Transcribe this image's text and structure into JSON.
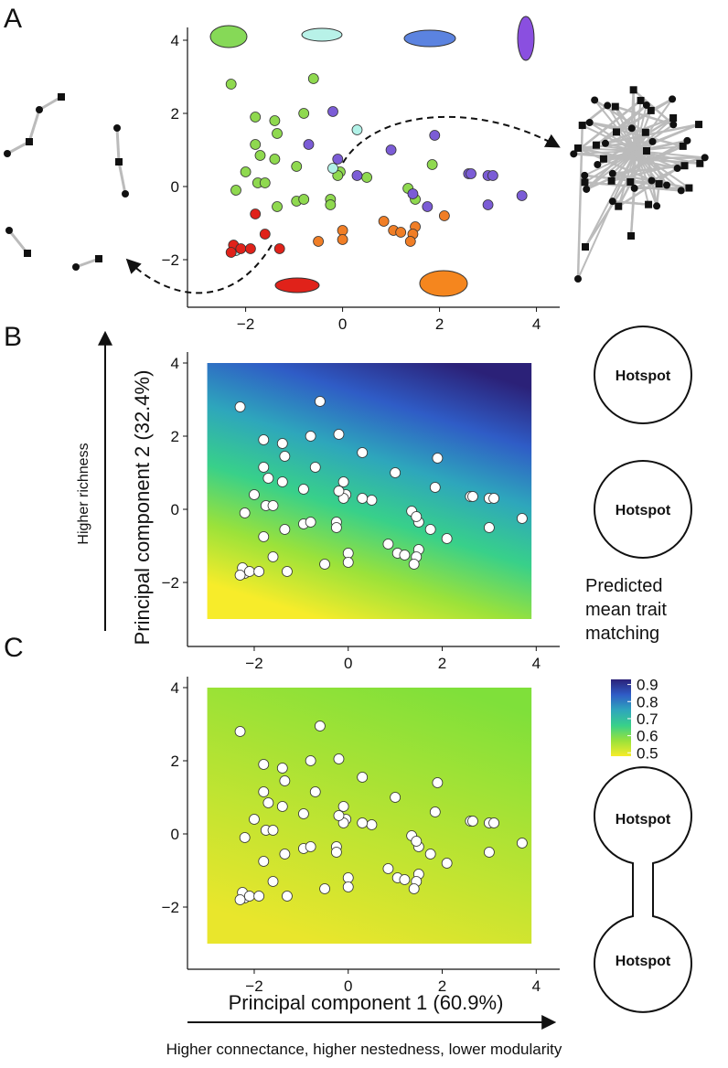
{
  "panels": [
    "A",
    "B",
    "C"
  ],
  "hotspots": [
    "Hotspot",
    "Hotspot",
    "Hotspot",
    "Hotspot"
  ],
  "arrows": {
    "richness": "Higher richness",
    "connectance": "Higher connectance, higher nestedness, lower modularity"
  },
  "chart_data": [
    {
      "type": "scatter",
      "xlim": [
        -3.2,
        4.48
      ],
      "ylim": [
        -3.3,
        4.35
      ],
      "xticks": [
        {
          "value": -2,
          "label": "−2"
        },
        0,
        2,
        4
      ],
      "yticks": [
        {
          "value": -2,
          "label": "−2"
        },
        0,
        2,
        4
      ],
      "series": [
        {
          "color": "#8fd94f",
          "x": [
            -2.3,
            -0.6,
            -1.8,
            -1.4,
            -0.8,
            -1.8,
            -1.35,
            -1.7,
            -2.0,
            -1.75,
            -1.6,
            -1.4,
            -0.95,
            -0.05,
            -0.1,
            0.5,
            1.35,
            1.85,
            -2.2,
            -1.35,
            -0.95,
            -0.8,
            -0.25,
            -0.25,
            1.5
          ],
          "y": [
            2.8,
            2.95,
            1.9,
            1.8,
            2.0,
            1.15,
            1.45,
            0.85,
            0.4,
            0.1,
            0.1,
            0.75,
            0.55,
            0.4,
            0.3,
            0.25,
            -0.05,
            0.6,
            -0.1,
            -0.55,
            -0.4,
            -0.35,
            -0.35,
            -0.5,
            -0.35
          ]
        },
        {
          "color": "#b2f2e8",
          "x": [
            0.3,
            -0.2,
            -2.2
          ],
          "y": [
            1.55,
            0.5,
            -1.75
          ]
        },
        {
          "color": "#7b5cd6",
          "x": [
            -0.2,
            1.9,
            -0.7,
            1.0,
            -0.1,
            0.3,
            2.6,
            2.65,
            3.0,
            3.1,
            3.7,
            1.45,
            3.0,
            1.75
          ],
          "y": [
            2.05,
            1.4,
            1.15,
            1.0,
            0.75,
            0.3,
            0.35,
            0.35,
            0.3,
            0.3,
            -0.25,
            -0.2,
            -0.5,
            -0.55
          ]
        },
        {
          "color": "#f07e26",
          "x": [
            0.85,
            1.05,
            1.2,
            1.5,
            1.45,
            1.4,
            2.1,
            -0.5,
            0.0,
            0.0
          ],
          "y": [
            -0.95,
            -1.2,
            -1.25,
            -1.1,
            -1.3,
            -1.5,
            -0.8,
            -1.5,
            -1.2,
            -1.45
          ]
        },
        {
          "color": "#e0221a",
          "x": [
            -2.25,
            -2.3,
            -2.1,
            -1.9,
            -1.8,
            -1.3,
            -1.6
          ],
          "y": [
            -1.6,
            -1.8,
            -1.7,
            -1.7,
            -0.75,
            -1.7,
            -1.3
          ]
        }
      ]
    },
    {
      "type": "surface",
      "xlim": [
        -3.42,
        4.5
      ],
      "ylim": [
        -3.75,
        4.3
      ],
      "xticks": [
        {
          "value": -2,
          "label": "−2"
        },
        0,
        2,
        4
      ],
      "yticks": [
        {
          "value": -2,
          "label": "−2"
        },
        0,
        2,
        4
      ],
      "ylabel": "Principal component 2 (32.4%)",
      "surface_x": [
        -3,
        3.9
      ],
      "surface_y": [
        -3,
        4
      ],
      "colors": [
        "#f7ec2a",
        "#9be23a",
        "#38d08a",
        "#2ea6bc",
        "#2f5cc6",
        "#2b2178"
      ],
      "colorbar": {
        "title": [
          "Predicted",
          "mean trait",
          "matching"
        ],
        "lim": [
          0.48,
          0.93
        ],
        "ticks": [
          0.9,
          0.8,
          0.7,
          0.6,
          0.5
        ]
      },
      "x": [
        -2.3,
        -0.6,
        -1.8,
        -1.4,
        -0.8,
        -1.8,
        -1.35,
        -1.7,
        -2.0,
        -1.75,
        -1.6,
        -1.4,
        -0.95,
        -0.05,
        -0.1,
        0.5,
        1.35,
        1.85,
        -2.2,
        -1.35,
        -0.95,
        -0.8,
        -0.25,
        -0.25,
        1.5,
        0.3,
        -0.2,
        -2.2,
        -0.2,
        1.9,
        -0.7,
        1.0,
        -0.1,
        0.3,
        2.6,
        2.65,
        3.0,
        3.1,
        3.7,
        1.45,
        3.0,
        1.75,
        0.85,
        1.05,
        1.2,
        1.5,
        1.45,
        1.4,
        2.1,
        -0.5,
        0.0,
        0.0,
        -2.25,
        -2.3,
        -2.1,
        -1.9,
        -1.8,
        -1.3,
        -1.6
      ],
      "y": [
        2.8,
        2.95,
        1.9,
        1.8,
        2.0,
        1.15,
        1.45,
        0.85,
        0.4,
        0.1,
        0.1,
        0.75,
        0.55,
        0.4,
        0.3,
        0.25,
        -0.05,
        0.6,
        -0.1,
        -0.55,
        -0.4,
        -0.35,
        -0.35,
        -0.5,
        -0.35,
        1.55,
        0.5,
        -1.75,
        2.05,
        1.4,
        1.15,
        1.0,
        0.75,
        0.3,
        0.35,
        0.35,
        0.3,
        0.3,
        -0.25,
        -0.2,
        -0.5,
        -0.55,
        -0.95,
        -1.2,
        -1.25,
        -1.1,
        -1.3,
        -1.5,
        -0.8,
        -1.5,
        -1.2,
        -1.45,
        -1.6,
        -1.8,
        -1.7,
        -1.7,
        -0.75,
        -1.7,
        -1.3
      ]
    },
    {
      "type": "surface",
      "xlim": [
        -3.42,
        4.5
      ],
      "ylim": [
        -3.7,
        4.3
      ],
      "xticks": [
        {
          "value": -2,
          "label": "−2"
        },
        0,
        2,
        4
      ],
      "yticks": [
        {
          "value": -2,
          "label": "−2"
        },
        0,
        2,
        4
      ],
      "xlabel": "Principal component 1 (60.9%)",
      "surface_x": [
        -3,
        3.9
      ],
      "surface_y": [
        -3,
        4
      ],
      "colors": [
        "#e9e62c",
        "#7fe03a"
      ],
      "x": [
        -2.3,
        -0.6,
        -1.8,
        -1.4,
        -0.8,
        -1.8,
        -1.35,
        -1.7,
        -2.0,
        -1.75,
        -1.6,
        -1.4,
        -0.95,
        -0.05,
        -0.1,
        0.5,
        1.35,
        1.85,
        -2.2,
        -1.35,
        -0.95,
        -0.8,
        -0.25,
        -0.25,
        1.5,
        0.3,
        -0.2,
        -2.2,
        -0.2,
        1.9,
        -0.7,
        1.0,
        -0.1,
        0.3,
        2.6,
        2.65,
        3.0,
        3.1,
        3.7,
        1.45,
        3.0,
        1.75,
        0.85,
        1.05,
        1.2,
        1.5,
        1.45,
        1.4,
        2.1,
        -0.5,
        0.0,
        0.0,
        -2.25,
        -2.3,
        -2.1,
        -1.9,
        -1.8,
        -1.3,
        -1.6
      ],
      "y": [
        2.8,
        2.95,
        1.9,
        1.8,
        2.0,
        1.15,
        1.45,
        0.85,
        0.4,
        0.1,
        0.1,
        0.75,
        0.55,
        0.4,
        0.3,
        0.25,
        -0.05,
        0.6,
        -0.1,
        -0.55,
        -0.4,
        -0.35,
        -0.35,
        -0.5,
        -0.35,
        1.55,
        0.5,
        -1.75,
        2.05,
        1.4,
        1.15,
        1.0,
        0.75,
        0.3,
        0.35,
        0.35,
        0.3,
        0.3,
        -0.25,
        -0.2,
        -0.5,
        -0.55,
        -0.95,
        -1.2,
        -1.25,
        -1.1,
        -1.3,
        -1.5,
        -0.8,
        -1.5,
        -1.2,
        -1.45,
        -1.6,
        -1.8,
        -1.7,
        -1.7,
        -0.75,
        -1.7,
        -1.3
      ]
    }
  ]
}
